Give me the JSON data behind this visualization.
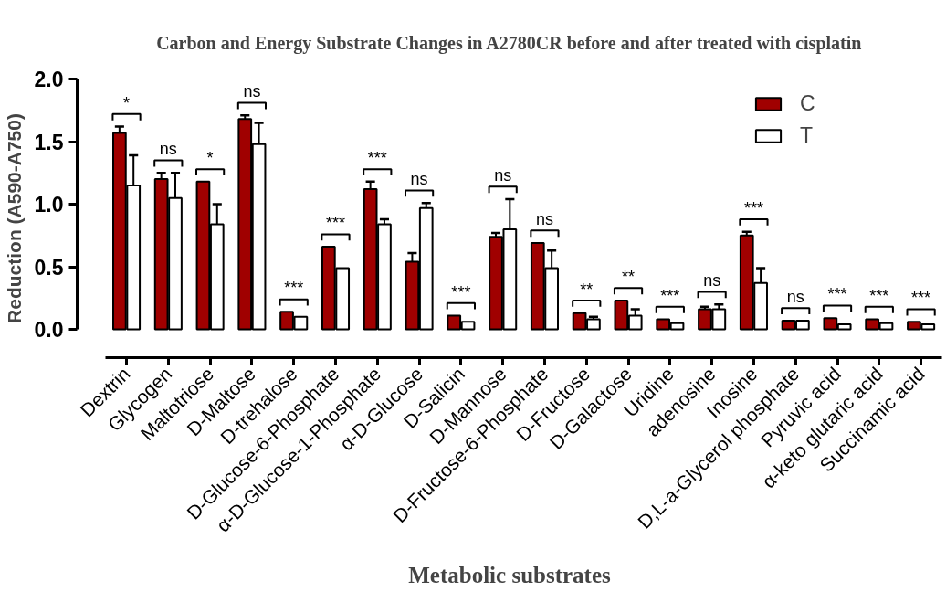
{
  "chart_data": {
    "type": "bar",
    "title": "Carbon and Energy Substrate Changes in A2780CR before and after treated with cisplatin",
    "xlabel": "Metabolic substrates",
    "ylabel": "Reduction (A590-A750)",
    "categories": [
      "Dextrin",
      "Glycogen",
      "Maltotriose",
      "D-Maltose",
      "D-trehalose",
      "D-Glucose-6-Phosphate",
      "α-D-Glucose-1-Phosphate",
      "α-D-Glucose",
      "D-Salicin",
      "D-Mannose",
      "D-Fructose-6-Phosphate",
      "D-Fructose",
      "D-Galactose",
      "Uridine",
      "adenosine",
      "Inosine",
      "D,L-a-Glycerol phosphate",
      "Pyruvic acid",
      "α-keto glutaric acid",
      "Succinamic acid"
    ],
    "series": [
      {
        "name": "C",
        "color": "#a00000",
        "values": [
          1.57,
          1.2,
          1.18,
          1.68,
          0.14,
          0.66,
          1.12,
          0.54,
          0.11,
          0.74,
          0.69,
          0.13,
          0.23,
          0.08,
          0.16,
          0.75,
          0.07,
          0.09,
          0.08,
          0.06
        ],
        "errors": [
          0.05,
          0.05,
          null,
          0.03,
          null,
          null,
          0.06,
          0.07,
          null,
          0.03,
          null,
          null,
          null,
          null,
          0.02,
          0.03,
          null,
          null,
          null,
          null
        ]
      },
      {
        "name": "T",
        "color": "#ffffff",
        "values": [
          1.15,
          1.05,
          0.84,
          1.48,
          0.1,
          0.49,
          0.84,
          0.97,
          0.06,
          0.8,
          0.49,
          0.08,
          0.11,
          0.05,
          0.16,
          0.37,
          0.07,
          0.04,
          0.05,
          0.04
        ],
        "errors": [
          0.24,
          0.2,
          0.16,
          0.17,
          null,
          null,
          0.04,
          0.04,
          null,
          0.24,
          0.14,
          0.02,
          0.05,
          null,
          0.04,
          0.12,
          null,
          null,
          null,
          null
        ]
      }
    ],
    "ylim": [
      0,
      2.0
    ],
    "yticks": [
      {
        "value": 0,
        "label": "0.0"
      },
      0.5,
      {
        "value": 1.0,
        "label": "1.0"
      },
      1.5,
      {
        "value": 2.0,
        "label": "2.0"
      }
    ],
    "legend": "top right",
    "annotations": [
      "*",
      "ns",
      "*",
      "ns",
      "***",
      "***",
      "***",
      "ns",
      "***",
      "ns",
      "ns",
      "**",
      "**",
      "***",
      "ns",
      "***",
      "ns",
      "***",
      "***",
      "***"
    ]
  }
}
